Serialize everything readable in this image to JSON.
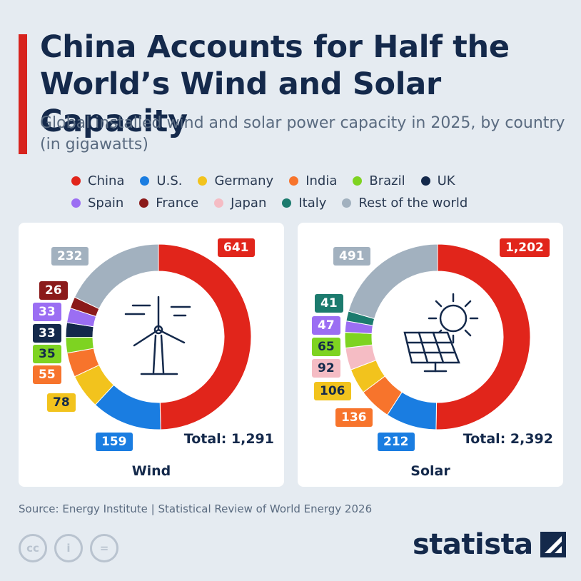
{
  "header": {
    "title": "China Accounts for Half the World’s Wind and Solar Capacity",
    "subtitle": "Global installed wind and solar power capacity in 2025, by country (in gigawatts)"
  },
  "legend": {
    "rows": [
      [
        {
          "name": "China",
          "color": "#e1251b"
        },
        {
          "name": "U.S.",
          "color": "#1a7de1"
        },
        {
          "name": "Germany",
          "color": "#f2c31d"
        },
        {
          "name": "India",
          "color": "#f7742c"
        },
        {
          "name": "Brazil",
          "color": "#7ed321"
        },
        {
          "name": "UK",
          "color": "#14294b"
        }
      ],
      [
        {
          "name": "Spain",
          "color": "#9b6ef3"
        },
        {
          "name": "France",
          "color": "#8b1a1a"
        },
        {
          "name": "Japan",
          "color": "#f5bcc4"
        },
        {
          "name": "Italy",
          "color": "#1c7b6e"
        },
        {
          "name": "Rest of the world",
          "color": "#a2b1bf"
        }
      ]
    ]
  },
  "chart_data": [
    {
      "type": "pie",
      "title": "Wind",
      "total_label": "Total: 1,291",
      "slices": [
        {
          "name": "China",
          "value": 641,
          "label": "641",
          "color": "#e1251b"
        },
        {
          "name": "U.S.",
          "value": 159,
          "label": "159",
          "color": "#1a7de1"
        },
        {
          "name": "Germany",
          "value": 78,
          "label": "78",
          "color": "#f2c31d"
        },
        {
          "name": "India",
          "value": 55,
          "label": "55",
          "color": "#f7742c"
        },
        {
          "name": "Brazil",
          "value": 35,
          "label": "35",
          "color": "#7ed321"
        },
        {
          "name": "UK",
          "value": 33,
          "label": "33",
          "color": "#14294b"
        },
        {
          "name": "Spain",
          "value": 33,
          "label": "33",
          "color": "#9b6ef3"
        },
        {
          "name": "France",
          "value": 26,
          "label": "26",
          "color": "#8b1a1a"
        },
        {
          "name": "Rest of the world",
          "value": 232,
          "label": "232",
          "color": "#a2b1bf"
        }
      ]
    },
    {
      "type": "pie",
      "title": "Solar",
      "total_label": "Total: 2,392",
      "slices": [
        {
          "name": "China",
          "value": 1202,
          "label": "1,202",
          "color": "#e1251b"
        },
        {
          "name": "U.S.",
          "value": 212,
          "label": "212",
          "color": "#1a7de1"
        },
        {
          "name": "India",
          "value": 136,
          "label": "136",
          "color": "#f7742c"
        },
        {
          "name": "Germany",
          "value": 106,
          "label": "106",
          "color": "#f2c31d"
        },
        {
          "name": "Japan",
          "value": 92,
          "label": "92",
          "color": "#f5bcc4"
        },
        {
          "name": "Brazil",
          "value": 65,
          "label": "65",
          "color": "#7ed321"
        },
        {
          "name": "Spain",
          "value": 47,
          "label": "47",
          "color": "#9b6ef3"
        },
        {
          "name": "Italy",
          "value": 41,
          "label": "41",
          "color": "#1c7b6e"
        },
        {
          "name": "Rest of the world",
          "value": 491,
          "label": "491",
          "color": "#a2b1bf"
        }
      ]
    }
  ],
  "footer": {
    "source": "Source: Energy Institute | Statistical Review of World Energy 2026",
    "cc_icons": [
      {
        "icon": "creative-commons-icon",
        "glyph": "cc"
      },
      {
        "icon": "attribution-icon",
        "glyph": "i"
      },
      {
        "icon": "no-derivatives-icon",
        "glyph": "="
      }
    ],
    "logo": "statista"
  }
}
